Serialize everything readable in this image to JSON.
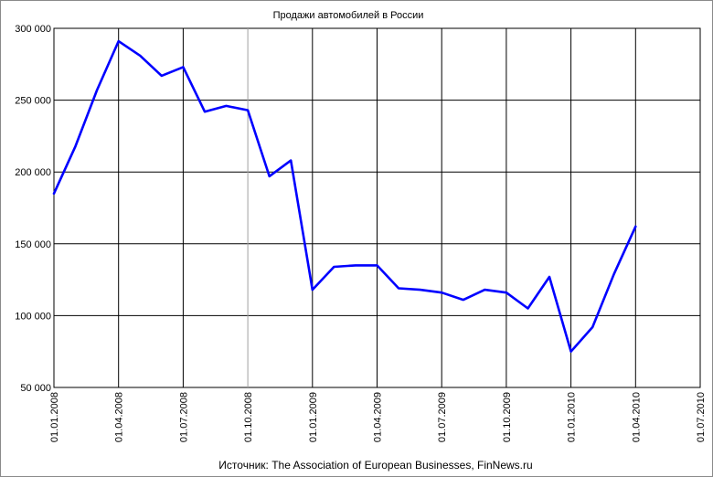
{
  "chart_data": {
    "type": "line",
    "title": "Продажи автомобилей в России",
    "source": "Источник: The Association of European Businesses, FinNews.ru",
    "xlabel": "",
    "ylabel": "",
    "ylim": [
      50000,
      300000
    ],
    "y_ticks": [
      50000,
      100000,
      150000,
      200000,
      250000,
      300000
    ],
    "y_tick_labels": [
      "50 000",
      "100 000",
      "150 000",
      "200 000",
      "250 000",
      "300 000"
    ],
    "x_tick_labels": [
      "01.01.2008",
      "01.04.2008",
      "01.07.2008",
      "01.10.2008",
      "01.01.2009",
      "01.04.2009",
      "01.07.2009",
      "01.10.2009",
      "01.01.2010",
      "01.04.2010",
      "01.07.2010"
    ],
    "x": [
      "2008-01",
      "2008-02",
      "2008-03",
      "2008-04",
      "2008-05",
      "2008-06",
      "2008-07",
      "2008-08",
      "2008-09",
      "2008-10",
      "2008-11",
      "2008-12",
      "2009-01",
      "2009-02",
      "2009-03",
      "2009-04",
      "2009-05",
      "2009-06",
      "2009-07",
      "2009-08",
      "2009-09",
      "2009-10",
      "2009-11",
      "2009-12",
      "2010-01",
      "2010-02",
      "2010-03",
      "2010-04"
    ],
    "series": [
      {
        "color": "#0000ff",
        "values": [
          185000,
          218000,
          257000,
          291000,
          281000,
          267000,
          273000,
          242000,
          246000,
          243000,
          197000,
          208000,
          118000,
          134000,
          135000,
          135000,
          119000,
          118000,
          116000,
          111000,
          118000,
          116000,
          105000,
          127000,
          75000,
          92000,
          129000,
          162000
        ]
      }
    ],
    "grid": true,
    "legend": "none"
  }
}
